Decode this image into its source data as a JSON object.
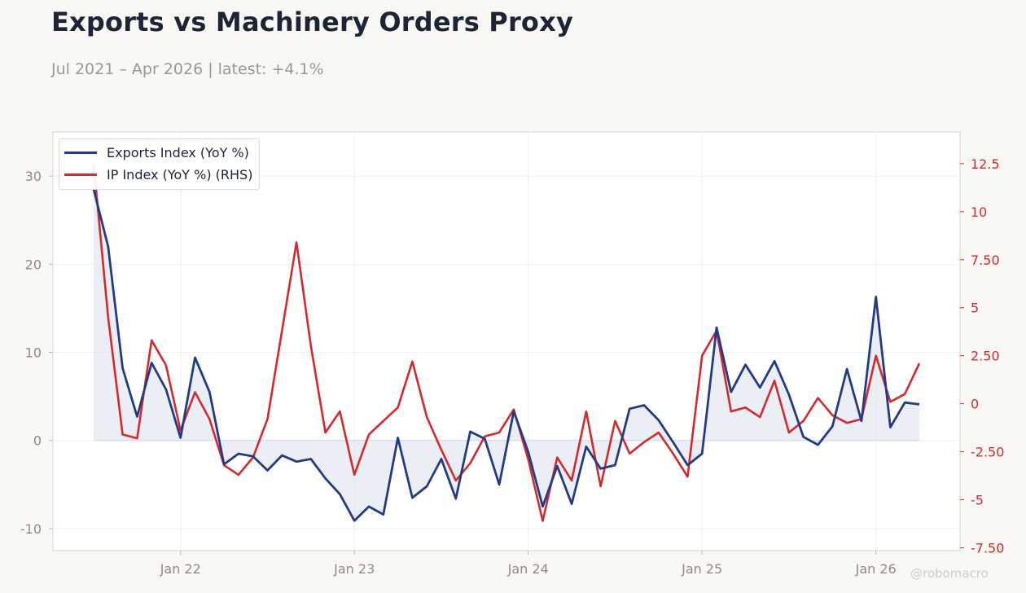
{
  "header": {
    "title": "Exports vs Machinery Orders Proxy",
    "subtitle": "Jul 2021 – Apr 2026 | latest: +4.1%"
  },
  "watermark": "@robomacro",
  "colors": {
    "exports": "#233b87",
    "ip": "#d42a2d",
    "fill": "#dde0ee",
    "left_axis_text": "#8f8c88",
    "right_axis_text": "#d42a2d"
  },
  "chart_data": {
    "type": "line",
    "x_start": "2021-07",
    "x_tick_labels": [
      "Jan 22",
      "Jan 23",
      "Jan 24",
      "Jan 25",
      "Jan 26"
    ],
    "x_tick_dates": [
      "2022-01",
      "2023-01",
      "2024-01",
      "2025-01",
      "2026-01"
    ],
    "ylim_left": [
      -12.5,
      35
    ],
    "left_ticks": [
      -10,
      0,
      10,
      20,
      30
    ],
    "ylim_right": [
      -7.65,
      14.15
    ],
    "right_ticks": [
      -7.5,
      -5,
      -2.5,
      0,
      2.5,
      5,
      7.5,
      10,
      12.5
    ],
    "right_tick_labels": [
      "-7.50",
      "-5",
      "-2.50",
      "0",
      "2.50",
      "5",
      "7.50",
      "10",
      "12.5"
    ],
    "grid": true,
    "legend_position": "top-left",
    "series": [
      {
        "name": "Exports Index (YoY %)",
        "axis": "left",
        "filled_to_zero": true,
        "values": [
          28.5,
          22.0,
          8.2,
          2.7,
          8.8,
          5.8,
          0.3,
          9.4,
          5.5,
          -2.7,
          -1.5,
          -1.8,
          -3.4,
          -1.7,
          -2.4,
          -2.1,
          -4.3,
          -6.1,
          -9.1,
          -7.5,
          -8.4,
          0.3,
          -6.5,
          -5.2,
          -2.1,
          -6.6,
          1.0,
          0.2,
          -5.0,
          3.3,
          -1.3,
          -7.5,
          -2.9,
          -7.2,
          -0.7,
          -3.2,
          -2.8,
          3.6,
          4.0,
          2.3,
          -0.2,
          -2.8,
          -1.5,
          12.8,
          5.5,
          8.6,
          6.0,
          9.0,
          5.2,
          0.4,
          -0.5,
          1.6,
          8.1,
          2.2,
          16.3,
          1.5,
          4.3,
          4.1
        ],
        "latest": "+4.1%"
      },
      {
        "name": "IP Index (YoY %) (RHS)",
        "axis": "right",
        "values": [
          12.5,
          4.5,
          -1.6,
          -1.8,
          3.3,
          2.0,
          -1.4,
          0.6,
          -0.8,
          -3.2,
          -3.7,
          -2.8,
          -0.8,
          3.8,
          8.4,
          3.0,
          -1.5,
          -0.4,
          -3.7,
          -1.6,
          -0.9,
          -0.2,
          2.2,
          -0.7,
          -2.4,
          -4.0,
          -3.1,
          -1.7,
          -1.5,
          -0.3,
          -2.9,
          -6.1,
          -2.8,
          -4.0,
          -0.4,
          -4.3,
          -0.9,
          -2.6,
          -2.0,
          -1.5,
          -2.6,
          -3.8,
          2.5,
          3.8,
          -0.4,
          -0.2,
          -0.7,
          1.2,
          -1.5,
          -0.9,
          0.3,
          -0.6,
          -1.0,
          -0.8,
          2.5,
          0.1,
          0.5,
          2.1
        ]
      }
    ]
  }
}
